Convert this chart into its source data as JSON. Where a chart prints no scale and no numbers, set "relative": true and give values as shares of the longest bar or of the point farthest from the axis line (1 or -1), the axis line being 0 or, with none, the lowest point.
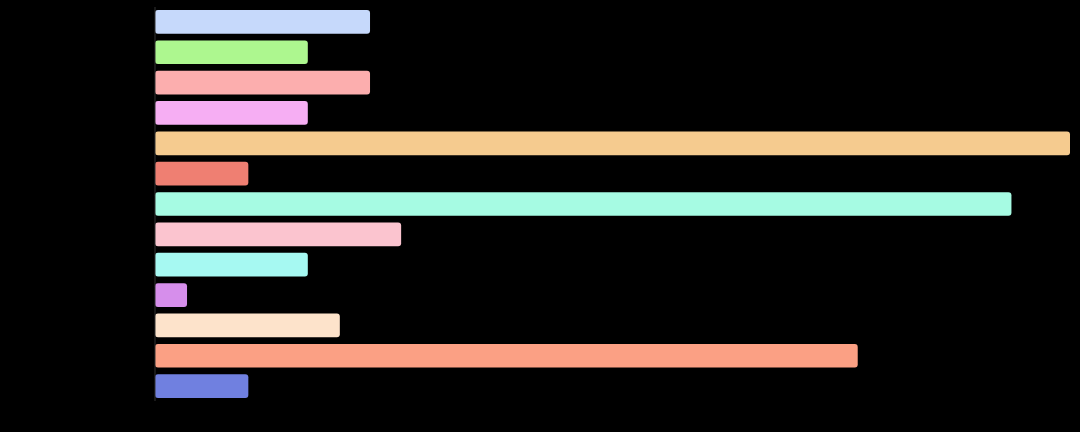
{
  "chart_data": {
    "type": "bar",
    "orientation": "horizontal",
    "relative": true,
    "categories": [
      null,
      null,
      null,
      null,
      null,
      null,
      null,
      null,
      null,
      null,
      null,
      null,
      null
    ],
    "values": [
      0.235,
      0.167,
      0.235,
      0.167,
      1,
      0.102,
      0.936,
      0.269,
      0.167,
      0.035,
      0.202,
      0.768,
      0.102
    ],
    "colors": [
      "#c6d9fb",
      "#adf78f",
      "#fcaeae",
      "#f6aef3",
      "#f5cb8f",
      "#ef7f72",
      "#a6fbe3",
      "#fbc4cf",
      "#a6f9f2",
      "#d68eeb",
      "#fde3cb",
      "#fba084",
      "#7080e0"
    ]
  }
}
